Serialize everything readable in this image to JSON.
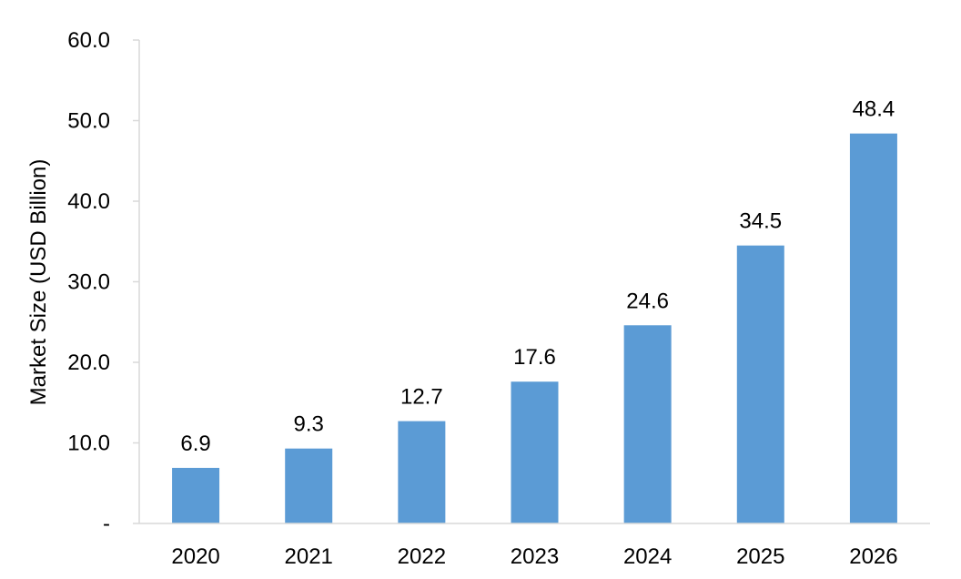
{
  "chart_data": {
    "type": "bar",
    "categories": [
      "2020",
      "2021",
      "2022",
      "2023",
      "2024",
      "2025",
      "2026"
    ],
    "values": [
      6.9,
      9.3,
      12.7,
      17.6,
      24.6,
      34.5,
      48.4
    ],
    "data_labels": [
      "6.9",
      "9.3",
      "12.7",
      "17.6",
      "24.6",
      "34.5",
      "48.4"
    ],
    "title": "",
    "xlabel": "",
    "ylabel": "Market Size (USD Billion)",
    "ylim": [
      0,
      60
    ],
    "y_ticks": [
      0,
      10,
      20,
      30,
      40,
      50,
      60
    ],
    "y_tick_labels": [
      "-",
      "10.0",
      "20.0",
      "30.0",
      "40.0",
      "50.0",
      "60.0"
    ],
    "grid": false,
    "legend": "none",
    "bar_color": "#5B9BD5",
    "axis_color": "#D9D9D9"
  }
}
